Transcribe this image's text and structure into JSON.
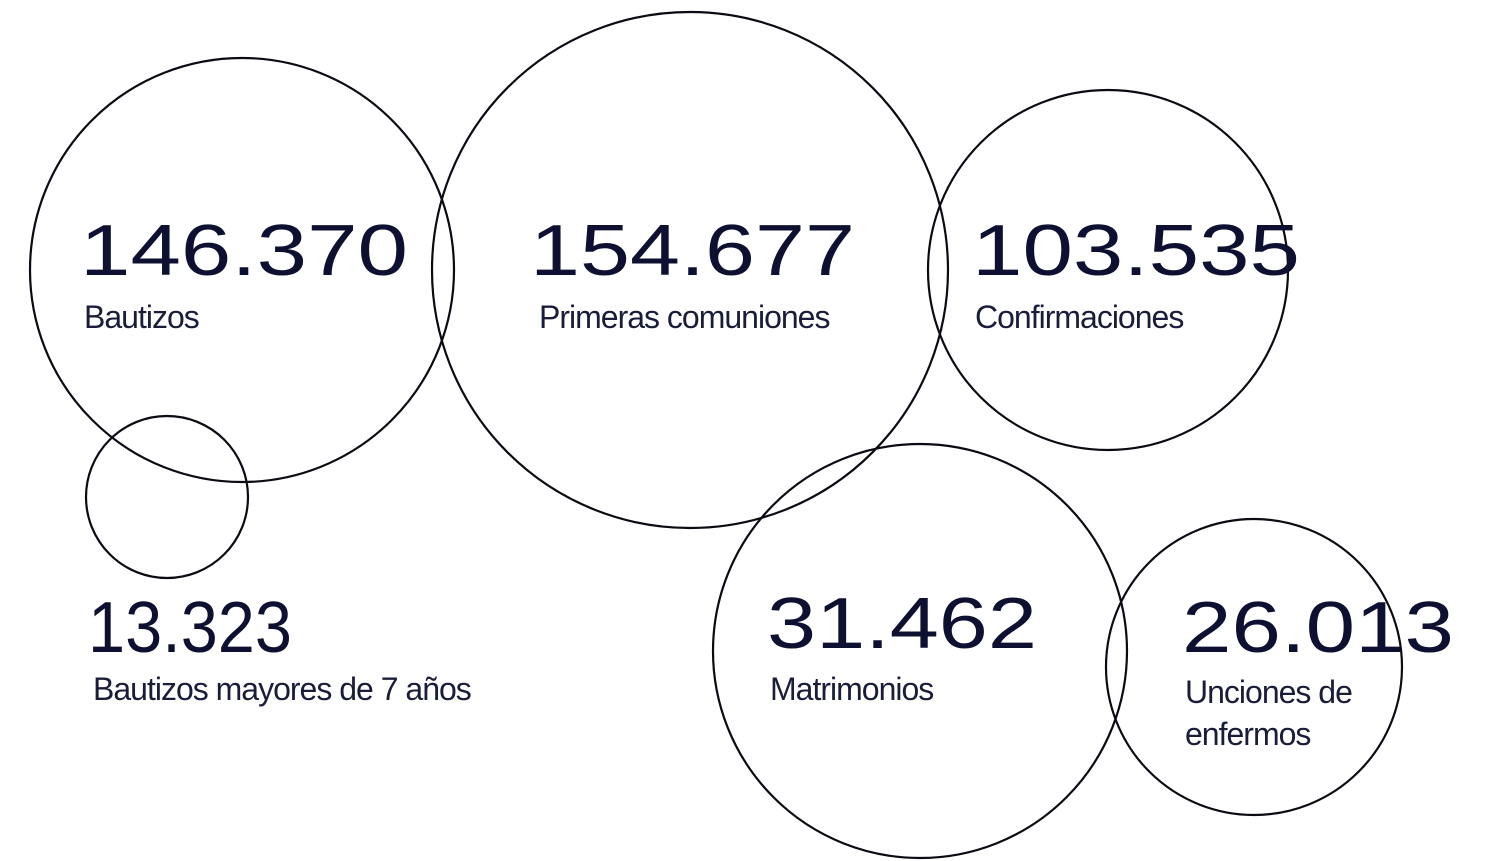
{
  "items": [
    {
      "number": "146.370",
      "label": [
        "Bautizos"
      ]
    },
    {
      "number": "154.677",
      "label": [
        "Primeras comuniones"
      ]
    },
    {
      "number": "103.535",
      "label": [
        "Confirmaciones"
      ]
    },
    {
      "number": "13.323",
      "label": [
        "Bautizos mayores de 7 años"
      ]
    },
    {
      "number": "31.462",
      "label": [
        "Matrimonios"
      ]
    },
    {
      "number": "26.013",
      "label": [
        "Unciones de",
        "enfermos"
      ]
    }
  ]
}
